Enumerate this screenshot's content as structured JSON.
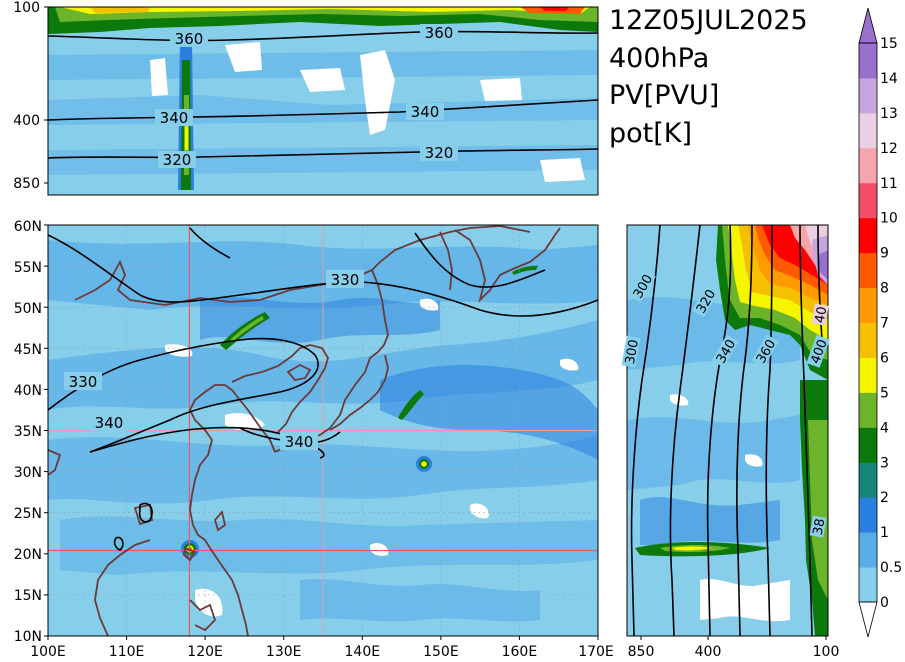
{
  "title_lines": [
    "12Z05JUL2025",
    "400hPa",
    "PV[PVU]",
    "pot[K]"
  ],
  "colors": {
    "bg_light": "#87ceeb",
    "bg_mid": "#5aaee8",
    "bg_blue": "#2a7fe0",
    "contour": "#000000",
    "coast": "#6b3a3a",
    "crosshair": "#e06060"
  },
  "colorbar": {
    "levels": [
      "0",
      "0.5",
      "1",
      "2",
      "3",
      "4",
      "5",
      "6",
      "7",
      "8",
      "9",
      "10",
      "11",
      "12",
      "13",
      "14",
      "15"
    ],
    "colors": [
      "#87ceeb",
      "#5aaee8",
      "#2a7fe0",
      "#16857a",
      "#0b7a0b",
      "#6cb52a",
      "#f5f500",
      "#f5c000",
      "#ff9a00",
      "#ff5a00",
      "#ff0000",
      "#f44f6a",
      "#f6a5ad",
      "#ead0e2",
      "#c7a6df",
      "#9a70cf"
    ]
  },
  "map": {
    "lon_ticks": [
      "100E",
      "110E",
      "120E",
      "130E",
      "140E",
      "150E",
      "160E",
      "170E"
    ],
    "lat_ticks": [
      "10N",
      "15N",
      "20N",
      "25N",
      "30N",
      "35N",
      "40N",
      "45N",
      "50N",
      "55N",
      "60N"
    ],
    "contour_labels": [
      "330",
      "330",
      "340",
      "340"
    ],
    "crosshair": {
      "lon": 118,
      "lat": 20.5
    }
  },
  "top_panel": {
    "y_ticks": [
      "100",
      "400",
      "850"
    ],
    "contour_labels": [
      "360",
      "360",
      "340",
      "340",
      "320",
      "320"
    ]
  },
  "right_panel": {
    "x_ticks": [
      "850",
      "400",
      "100"
    ],
    "contour_labels": [
      "300",
      "300",
      "320",
      "340",
      "360",
      "400",
      "40",
      "38"
    ]
  }
}
